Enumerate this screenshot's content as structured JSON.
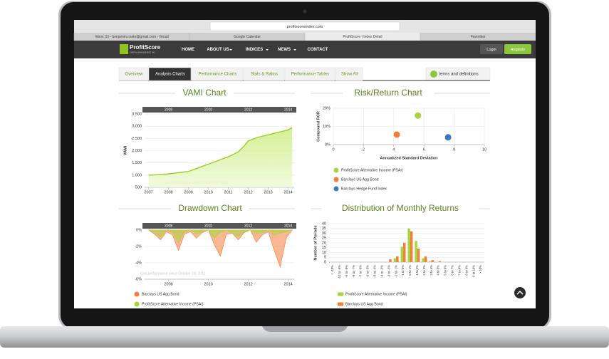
{
  "browser": {
    "url": "profitscoreindex.com",
    "tabs": [
      "Inbox (1) - benjamin.coate@gmail.com - Gmail",
      "Google Calendar",
      "ProfitScore | Index Detail",
      "Favorites"
    ]
  },
  "nav": {
    "logo": "ProfitScore",
    "logo_sub": "CAPITAL MANAGEMENT, INC.",
    "items": [
      "HOME",
      "ABOUT US",
      "INDICES",
      "NEWS",
      "CONTACT"
    ],
    "login": "Login",
    "register": "Register"
  },
  "tabs": {
    "items": [
      "Overview",
      "Analysis Charts",
      "Performance Charts",
      "Stats & Ratios",
      "Performance Tables",
      "Show All"
    ],
    "active": 1,
    "terms": "terms and definitions"
  },
  "chart_data": [
    {
      "type": "line",
      "title": "VAMI Chart",
      "y_label": "VAMI",
      "annotation": "Live performance since October 19, 2011",
      "navigator": [
        2008,
        2010,
        2012,
        2014
      ],
      "xlim": [
        2006.8,
        2014.3
      ],
      "xticks": [
        2007,
        2008,
        2009,
        2010,
        2011,
        2012,
        2013,
        2014
      ],
      "ylim": [
        500,
        3500
      ],
      "yticks": [
        500,
        {
          "value": 1000,
          "label": "1,000"
        },
        {
          "value": 1500,
          "label": "1,500"
        },
        {
          "value": 2000,
          "label": "2,000"
        },
        {
          "value": 2500,
          "label": "2,500"
        },
        {
          "value": 3000,
          "label": "3,000"
        },
        {
          "value": 3500,
          "label": "3,500"
        }
      ],
      "series": [
        {
          "name": "ProfitScore Alternative Income (PSAI)",
          "color": "#9ccc2a",
          "x": [
            2007,
            2007.5,
            2008,
            2008.5,
            2009,
            2009.5,
            2010,
            2010.5,
            2011,
            2011.5,
            2011.8,
            2012,
            2012.5,
            2013,
            2013.5,
            2014,
            2014.2
          ],
          "values": [
            1000,
            1020,
            1050,
            1100,
            1150,
            1300,
            1450,
            1600,
            1750,
            1950,
            2200,
            2400,
            2550,
            2650,
            2750,
            2850,
            2950
          ]
        }
      ]
    },
    {
      "type": "scatter",
      "title": "Risk/Return Chart",
      "x_label": "Annualized Standard Deviation",
      "y_label": "Compound ROR",
      "xlim": [
        0,
        10
      ],
      "xticks": [
        0,
        2,
        4,
        6,
        8,
        10
      ],
      "ylim": [
        0,
        20
      ],
      "yticks": [
        {
          "value": 0,
          "label": "0%"
        },
        {
          "value": 10,
          "label": "10%"
        },
        {
          "value": 20,
          "label": "20%"
        }
      ],
      "series": [
        {
          "name": "ProfitScore Alternative Income (PSAI)",
          "color": "#a5d63a",
          "x": [
            5.6
          ],
          "values": [
            16
          ]
        },
        {
          "name": "Barclays US Agg Bond",
          "color": "#f47c3c",
          "x": [
            4.2
          ],
          "values": [
            5.5
          ]
        },
        {
          "name": "Barclays Hedge Fund Index",
          "color": "#3d7bbf",
          "x": [
            7.6
          ],
          "values": [
            4
          ]
        }
      ]
    },
    {
      "type": "area",
      "title": "Drawdown Chart",
      "annotation": "Live performance since October 19, 2011",
      "navigator": [
        2008,
        2010,
        2012,
        2014
      ],
      "xlim": [
        2006.8,
        2014.3
      ],
      "xticks": [
        2008,
        2010,
        2012,
        2014
      ],
      "ylim": [
        -6,
        0
      ],
      "yticks": [
        {
          "value": 0,
          "label": "0%"
        },
        {
          "value": -2,
          "label": "-2%"
        },
        {
          "value": -4,
          "label": "-4%"
        },
        {
          "value": -6,
          "label": "-6%"
        }
      ],
      "x": [
        2007,
        2007.3,
        2007.6,
        2007.9,
        2008.2,
        2008.5,
        2008.8,
        2009.1,
        2009.4,
        2009.7,
        2010,
        2010.3,
        2010.6,
        2010.9,
        2011.2,
        2011.5,
        2011.8,
        2012.1,
        2012.4,
        2012.7,
        2013,
        2013.3,
        2013.6,
        2013.9,
        2014.2
      ],
      "series": [
        {
          "name": "Barclays US Agg Bond",
          "color": "#f47c3c",
          "values": [
            0,
            -0.5,
            -1.2,
            -0.2,
            -0.6,
            -2.5,
            -0.5,
            -0.2,
            -1,
            -0.3,
            0,
            -1.8,
            -3.2,
            -0.5,
            -0.4,
            -1.2,
            -0.3,
            0,
            -1.5,
            -0.6,
            -0.2,
            -2.5,
            -4.5,
            -1,
            0
          ]
        },
        {
          "name": "ProfitScore Alternative Income (PSAI)",
          "color": "#a5d63a",
          "values": [
            0,
            -0.4,
            -0.8,
            0,
            -0.3,
            -1.5,
            -0.2,
            0,
            -0.5,
            -0.2,
            0,
            -1,
            -0.3,
            0,
            -0.4,
            -0.8,
            -0.2,
            0,
            -0.5,
            -0.3,
            0,
            -0.6,
            -0.4,
            -0.2,
            0
          ]
        }
      ]
    },
    {
      "type": "bar",
      "title": "Distribution of Monthly Returns",
      "y_label": "Number of Periods",
      "categories": [
        "< -10%",
        "-10 to -9%",
        "-9 to -8%",
        "-8 to -7%",
        "-7 to -6%",
        "-6 to -5%",
        "-5 to -4%",
        "-4 to -3%",
        "-3 to -2%",
        "-2 to -1%",
        "-1 to 0%",
        "0 to 1%",
        "1 to 2%",
        "2 to 3%",
        "3 to 4%",
        "4 to 5%",
        "5 to 6%",
        "6 to 7%",
        "7 to 8%",
        "8 to 9%",
        "9 to 10%",
        "> 10%"
      ],
      "ylim": [
        0,
        40
      ],
      "yticks": [
        0,
        5,
        10,
        15,
        20,
        25,
        30,
        35,
        40
      ],
      "series": [
        {
          "name": "ProfitScore Alternative Income (PSAI)",
          "color": "#a5d63a",
          "values": [
            0,
            0,
            0,
            0,
            0,
            0,
            0,
            0,
            0,
            4,
            16,
            35,
            22,
            4,
            1,
            0,
            0,
            0,
            0,
            0,
            0,
            0
          ]
        },
        {
          "name": "Barclays US Agg Bond",
          "color": "#f47c3c",
          "values": [
            0,
            0,
            0,
            0,
            0,
            0,
            0,
            0,
            3,
            6,
            20,
            32,
            14,
            6,
            2,
            1,
            0,
            0,
            0,
            0,
            0,
            0
          ]
        }
      ]
    }
  ]
}
